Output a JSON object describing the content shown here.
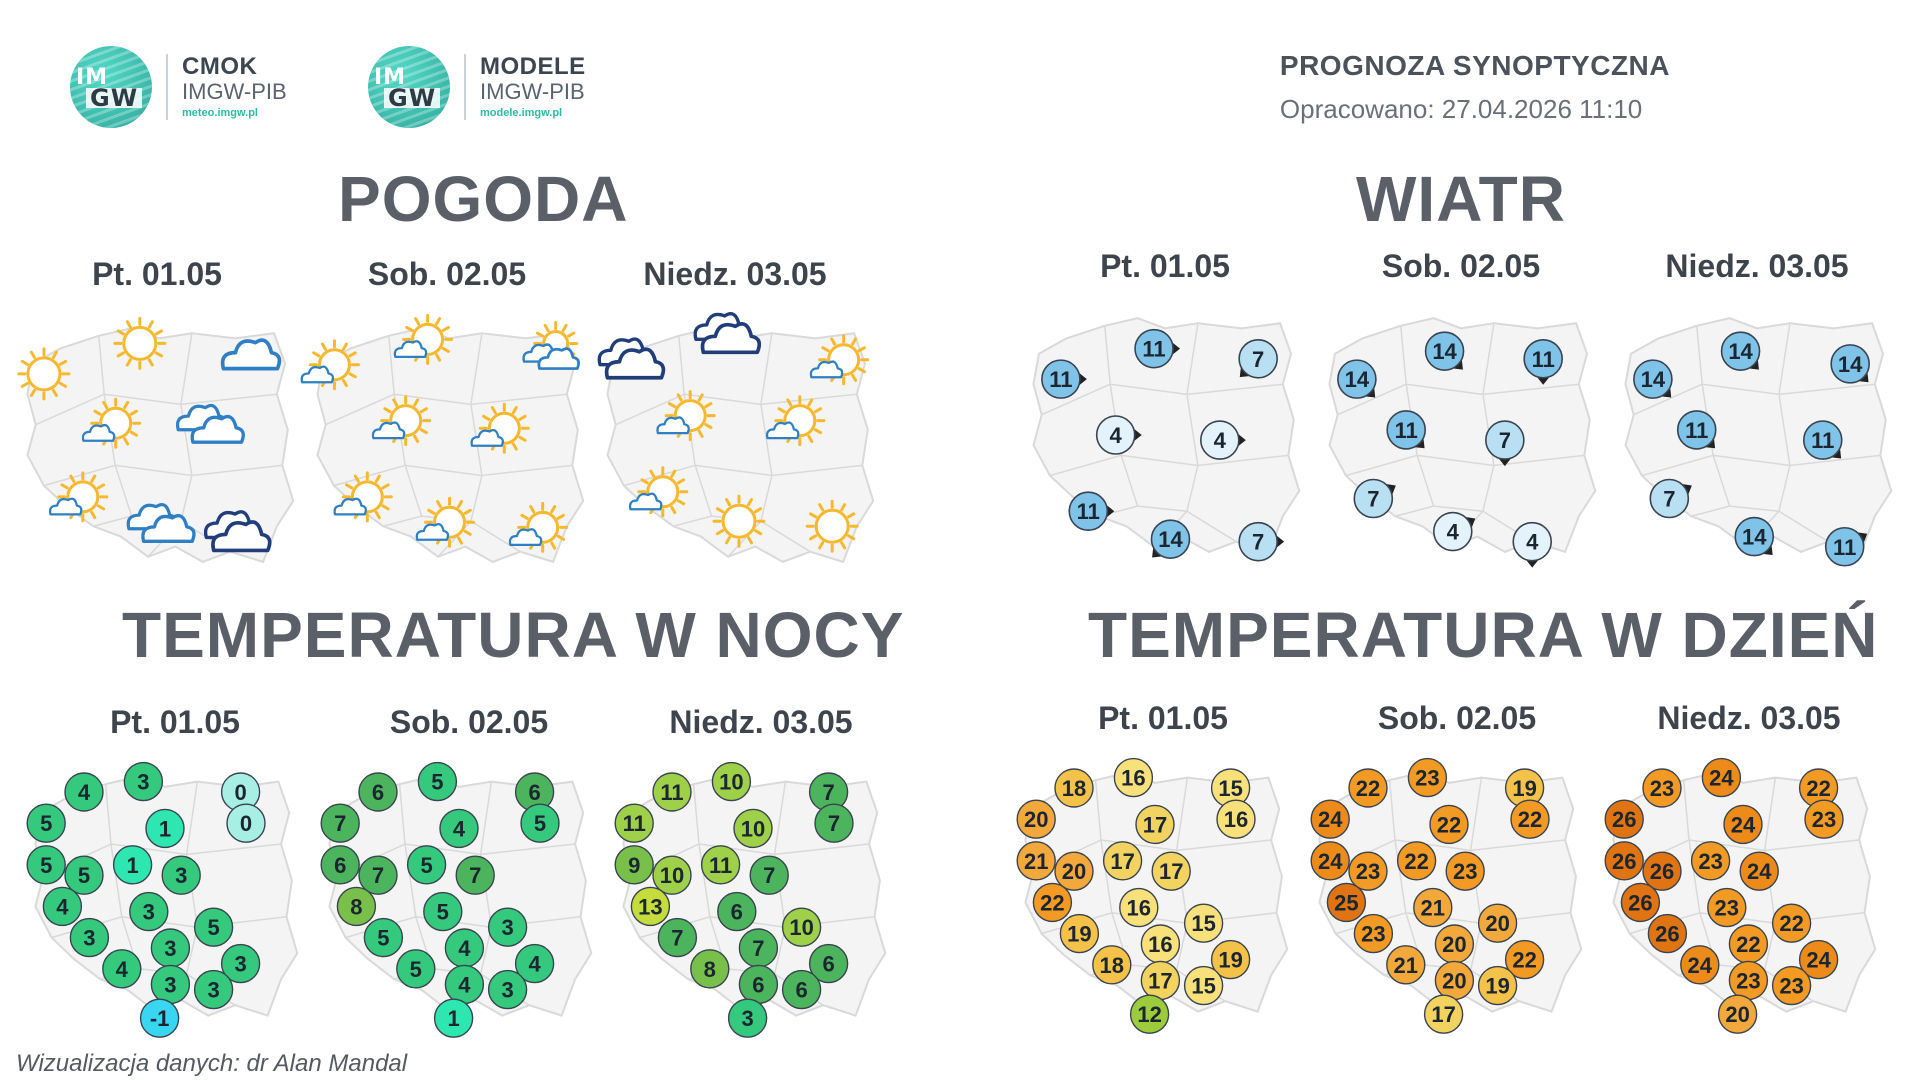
{
  "logos": [
    {
      "name": "CMOK",
      "org": "IMGW-PIB",
      "url": "meteo.imgw.pl",
      "disc_text_top": "IM",
      "disc_text_bottom": "GW"
    },
    {
      "name": "MODELE",
      "org": "IMGW-PIB",
      "url": "modele.imgw.pl",
      "disc_text_top": "IM",
      "disc_text_bottom": "GW"
    }
  ],
  "header": {
    "title": "PROGNOZA SYNOPTYCZNA",
    "prepared": "Opracowano: 27.04.2026 11:10"
  },
  "sections": {
    "weather": {
      "title": "POGODA",
      "days": [
        "Pt. 01.05",
        "Sob. 02.05",
        "Niedz. 03.05"
      ],
      "maps": [
        {
          "points": [
            {
              "u": 0.08,
              "v": 0.22,
              "kind": "sun"
            },
            {
              "u": 0.43,
              "v": 0.1,
              "kind": "sun"
            },
            {
              "u": 0.83,
              "v": 0.16,
              "kind": "cloud"
            },
            {
              "u": 0.32,
              "v": 0.43,
              "kind": "sun-cloud"
            },
            {
              "u": 0.68,
              "v": 0.43,
              "kind": "cloud-double"
            },
            {
              "u": 0.2,
              "v": 0.72,
              "kind": "sun-cloud"
            },
            {
              "u": 0.5,
              "v": 0.82,
              "kind": "cloud-double"
            },
            {
              "u": 0.78,
              "v": 0.86,
              "kind": "cloud-dark"
            }
          ]
        },
        {
          "points": [
            {
              "u": 0.06,
              "v": 0.2,
              "kind": "sun-cloud"
            },
            {
              "u": 0.4,
              "v": 0.1,
              "kind": "sun-cloud"
            },
            {
              "u": 0.86,
              "v": 0.14,
              "kind": "cloud-double-sun"
            },
            {
              "u": 0.32,
              "v": 0.42,
              "kind": "sun-cloud"
            },
            {
              "u": 0.68,
              "v": 0.45,
              "kind": "sun-cloud"
            },
            {
              "u": 0.18,
              "v": 0.72,
              "kind": "sun-cloud"
            },
            {
              "u": 0.48,
              "v": 0.82,
              "kind": "sun-cloud"
            },
            {
              "u": 0.82,
              "v": 0.84,
              "kind": "sun-cloud"
            }
          ]
        },
        {
          "points": [
            {
              "u": 0.1,
              "v": 0.18,
              "kind": "cloud-dark"
            },
            {
              "u": 0.45,
              "v": 0.08,
              "kind": "cloud-dark"
            },
            {
              "u": 0.86,
              "v": 0.18,
              "kind": "sun-cloud"
            },
            {
              "u": 0.3,
              "v": 0.4,
              "kind": "sun-cloud"
            },
            {
              "u": 0.7,
              "v": 0.42,
              "kind": "sun-cloud"
            },
            {
              "u": 0.2,
              "v": 0.7,
              "kind": "sun-cloud"
            },
            {
              "u": 0.5,
              "v": 0.8,
              "kind": "sun"
            },
            {
              "u": 0.84,
              "v": 0.82,
              "kind": "sun"
            }
          ]
        }
      ]
    },
    "wind": {
      "title": "WIATR",
      "days": [
        "Pt. 01.05",
        "Sob. 02.05",
        "Niedz. 03.05"
      ],
      "maps": [
        {
          "points": [
            {
              "u": 0.12,
              "v": 0.28,
              "val": "11",
              "dir": 0
            },
            {
              "u": 0.46,
              "v": 0.16,
              "val": "11",
              "dir": 0
            },
            {
              "u": 0.84,
              "v": 0.2,
              "val": "7",
              "dir": 135
            },
            {
              "u": 0.32,
              "v": 0.5,
              "val": "4",
              "dir": 0
            },
            {
              "u": 0.7,
              "v": 0.52,
              "val": "4",
              "dir": 0
            },
            {
              "u": 0.22,
              "v": 0.8,
              "val": "11",
              "dir": 0
            },
            {
              "u": 0.52,
              "v": 0.91,
              "val": "14",
              "dir": 135
            },
            {
              "u": 0.84,
              "v": 0.92,
              "val": "7",
              "dir": 0
            }
          ]
        },
        {
          "points": [
            {
              "u": 0.12,
              "v": 0.28,
              "val": "14",
              "dir": 45
            },
            {
              "u": 0.44,
              "v": 0.17,
              "val": "14",
              "dir": 45
            },
            {
              "u": 0.8,
              "v": 0.2,
              "val": "11",
              "dir": 90
            },
            {
              "u": 0.3,
              "v": 0.48,
              "val": "11",
              "dir": 45
            },
            {
              "u": 0.66,
              "v": 0.52,
              "val": "7",
              "dir": 90
            },
            {
              "u": 0.18,
              "v": 0.75,
              "val": "7",
              "dir": -30
            },
            {
              "u": 0.47,
              "v": 0.88,
              "val": "4",
              "dir": -30
            },
            {
              "u": 0.76,
              "v": 0.92,
              "val": "4",
              "dir": 90
            }
          ]
        },
        {
          "points": [
            {
              "u": 0.12,
              "v": 0.28,
              "val": "14",
              "dir": 45
            },
            {
              "u": 0.44,
              "v": 0.17,
              "val": "14",
              "dir": 45
            },
            {
              "u": 0.84,
              "v": 0.22,
              "val": "14",
              "dir": 45
            },
            {
              "u": 0.28,
              "v": 0.48,
              "val": "11",
              "dir": 45
            },
            {
              "u": 0.74,
              "v": 0.52,
              "val": "11",
              "dir": 45
            },
            {
              "u": 0.18,
              "v": 0.75,
              "val": "7",
              "dir": -30
            },
            {
              "u": 0.49,
              "v": 0.9,
              "val": "14",
              "dir": 45
            },
            {
              "u": 0.82,
              "v": 0.94,
              "val": "11",
              "dir": -30
            }
          ]
        }
      ]
    },
    "night": {
      "title": "TEMPERATURA W NOCY",
      "days": [
        "Pt. 01.05",
        "Sob. 02.05",
        "Niedz. 03.05"
      ],
      "maps": [
        {
          "values": [
            "4",
            "3",
            "0",
            "5",
            "1",
            "0",
            "1",
            "5",
            "5",
            "3",
            "4",
            "3",
            "5",
            "3",
            "3",
            "3",
            "4",
            "3",
            "3",
            "-1"
          ]
        },
        {
          "values": [
            "6",
            "5",
            "6",
            "7",
            "4",
            "5",
            "5",
            "6",
            "7",
            "7",
            "8",
            "5",
            "3",
            "5",
            "4",
            "4",
            "5",
            "4",
            "3",
            "1"
          ]
        },
        {
          "values": [
            "11",
            "10",
            "7",
            "11",
            "10",
            "7",
            "11",
            "9",
            "10",
            "7",
            "13",
            "6",
            "10",
            "7",
            "6",
            "7",
            "8",
            "6",
            "6",
            "3"
          ]
        }
      ]
    },
    "day": {
      "title": "TEMPERATURA W DZIEŃ",
      "days": [
        "Pt. 01.05",
        "Sob. 02.05",
        "Niedz. 03.05"
      ],
      "maps": [
        {
          "values": [
            "18",
            "16",
            "15",
            "20",
            "17",
            "16",
            "17",
            "21",
            "20",
            "17",
            "22",
            "16",
            "15",
            "19",
            "19",
            "16",
            "18",
            "17",
            "15",
            "12"
          ]
        },
        {
          "values": [
            "22",
            "23",
            "19",
            "24",
            "22",
            "22",
            "22",
            "24",
            "23",
            "23",
            "25",
            "21",
            "20",
            "23",
            "22",
            "20",
            "21",
            "20",
            "19",
            "17"
          ]
        },
        {
          "values": [
            "23",
            "24",
            "22",
            "26",
            "24",
            "23",
            "23",
            "26",
            "26",
            "24",
            "26",
            "23",
            "22",
            "26",
            "24",
            "22",
            "24",
            "23",
            "23",
            "20"
          ]
        }
      ]
    }
  },
  "credit": "Wizualizacja danych: dr Alan Mandal",
  "colors": {
    "map_fill": "#f4f4f4",
    "map_stroke": "#d9d9d9",
    "wind_light": "#e4f3fb",
    "wind_mid": "#b9dff3",
    "wind_strong": "#7fc3e8",
    "sun": "#f5b82e",
    "cloud_light": "#2f7fc4",
    "cloud_dark": "#213e7a",
    "title_gray": "#5b6068"
  }
}
